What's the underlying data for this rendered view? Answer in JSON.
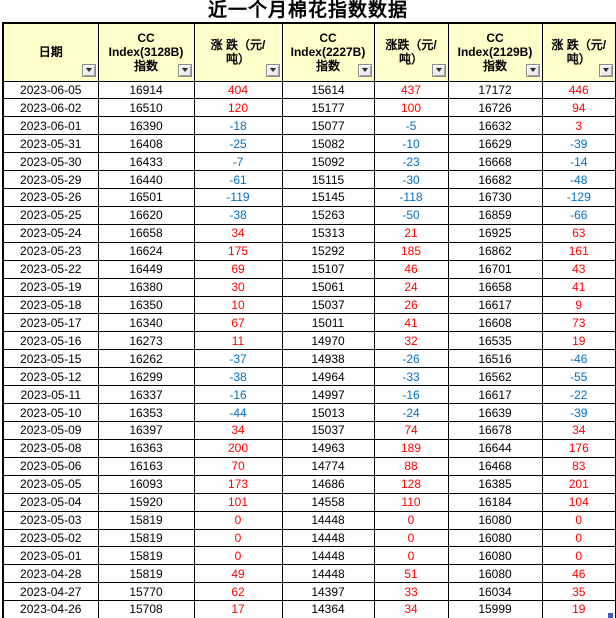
{
  "title": "近一个月棉花指数数据",
  "colors": {
    "header_bg": "#FFFFCC",
    "up": "#FF0000",
    "down": "#0070C0",
    "border": "#000000",
    "fill_handle": "#3C5FC0"
  },
  "columns": [
    {
      "label": "日期"
    },
    {
      "label": "CC\nIndex(3128B)\n指数"
    },
    {
      "label": "涨 跌（元/\n吨）"
    },
    {
      "label": "CC\nIndex(2227B)\n指数"
    },
    {
      "label": "涨跌（元/\n吨）"
    },
    {
      "label": "CC\nIndex(2129B)\n指数"
    },
    {
      "label": "涨 跌（元/\n吨）"
    }
  ],
  "rows": [
    [
      "2023-06-05",
      16914,
      404,
      15614,
      437,
      17172,
      446
    ],
    [
      "2023-06-02",
      16510,
      120,
      15177,
      100,
      16726,
      94
    ],
    [
      "2023-06-01",
      16390,
      -18,
      15077,
      -5,
      16632,
      3
    ],
    [
      "2023-05-31",
      16408,
      -25,
      15082,
      -10,
      16629,
      -39
    ],
    [
      "2023-05-30",
      16433,
      -7,
      15092,
      -23,
      16668,
      -14
    ],
    [
      "2023-05-29",
      16440,
      -61,
      15115,
      -30,
      16682,
      -48
    ],
    [
      "2023-05-26",
      16501,
      -119,
      15145,
      -118,
      16730,
      -129
    ],
    [
      "2023-05-25",
      16620,
      -38,
      15263,
      -50,
      16859,
      -66
    ],
    [
      "2023-05-24",
      16658,
      34,
      15313,
      21,
      16925,
      63
    ],
    [
      "2023-05-23",
      16624,
      175,
      15292,
      185,
      16862,
      161
    ],
    [
      "2023-05-22",
      16449,
      69,
      15107,
      46,
      16701,
      43
    ],
    [
      "2023-05-19",
      16380,
      30,
      15061,
      24,
      16658,
      41
    ],
    [
      "2023-05-18",
      16350,
      10,
      15037,
      26,
      16617,
      9
    ],
    [
      "2023-05-17",
      16340,
      67,
      15011,
      41,
      16608,
      73
    ],
    [
      "2023-05-16",
      16273,
      11,
      14970,
      32,
      16535,
      19
    ],
    [
      "2023-05-15",
      16262,
      -37,
      14938,
      -26,
      16516,
      -46
    ],
    [
      "2023-05-12",
      16299,
      -38,
      14964,
      -33,
      16562,
      -55
    ],
    [
      "2023-05-11",
      16337,
      -16,
      14997,
      -16,
      16617,
      -22
    ],
    [
      "2023-05-10",
      16353,
      -44,
      15013,
      -24,
      16639,
      -39
    ],
    [
      "2023-05-09",
      16397,
      34,
      15037,
      74,
      16678,
      34
    ],
    [
      "2023-05-08",
      16363,
      200,
      14963,
      189,
      16644,
      176
    ],
    [
      "2023-05-06",
      16163,
      70,
      14774,
      88,
      16468,
      83
    ],
    [
      "2023-05-05",
      16093,
      173,
      14686,
      128,
      16385,
      201
    ],
    [
      "2023-05-04",
      15920,
      101,
      14558,
      110,
      16184,
      104
    ],
    [
      "2023-05-03",
      15819,
      0,
      14448,
      0,
      16080,
      0
    ],
    [
      "2023-05-02",
      15819,
      0,
      14448,
      0,
      16080,
      0
    ],
    [
      "2023-05-01",
      15819,
      0,
      14448,
      0,
      16080,
      0
    ],
    [
      "2023-04-28",
      15819,
      49,
      14448,
      51,
      16080,
      46
    ],
    [
      "2023-04-27",
      15770,
      62,
      14397,
      33,
      16034,
      35
    ],
    [
      "2023-04-26",
      15708,
      17,
      14364,
      34,
      15999,
      19
    ]
  ]
}
